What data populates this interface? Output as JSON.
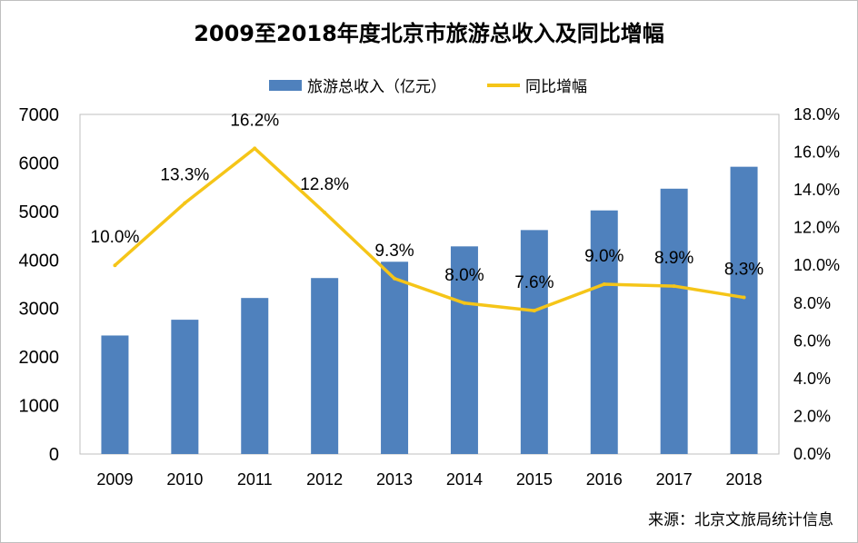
{
  "chart_data": {
    "type": "bar",
    "title": "2009至2018年度北京市旅游总收入及同比增幅",
    "categories": [
      "2009",
      "2010",
      "2011",
      "2012",
      "2013",
      "2014",
      "2015",
      "2016",
      "2017",
      "2018"
    ],
    "series": [
      {
        "name": "旅游总收入（亿元）",
        "type": "bar",
        "axis": "left",
        "color": "#4f81bd",
        "values": [
          2443,
          2768,
          3216,
          3627,
          3963,
          4280,
          4616,
          5021,
          5469,
          5921
        ]
      },
      {
        "name": "同比增幅",
        "type": "line",
        "axis": "right",
        "color": "#f5c518",
        "values": [
          10.0,
          13.3,
          16.2,
          12.8,
          9.3,
          8.0,
          7.6,
          9.0,
          8.9,
          8.3
        ],
        "labels": [
          "10.0%",
          "13.3%",
          "16.2%",
          "12.8%",
          "9.3%",
          "8.0%",
          "7.6%",
          "9.0%",
          "8.9%",
          "8.3%"
        ]
      }
    ],
    "y_left": {
      "min": 0,
      "max": 7000,
      "step": 1000,
      "ticks": [
        "0",
        "1000",
        "2000",
        "3000",
        "4000",
        "5000",
        "6000",
        "7000"
      ]
    },
    "y_right": {
      "min": 0,
      "max": 18,
      "step": 2,
      "ticks": [
        "0.0%",
        "2.0%",
        "4.0%",
        "6.0%",
        "8.0%",
        "10.0%",
        "12.0%",
        "14.0%",
        "16.0%",
        "18.0%"
      ]
    },
    "legend": {
      "position": "top",
      "items": [
        "旅游总收入（亿元）",
        "同比增幅"
      ]
    },
    "grid": false
  },
  "source_text": "来源：北京文旅局统计信息"
}
